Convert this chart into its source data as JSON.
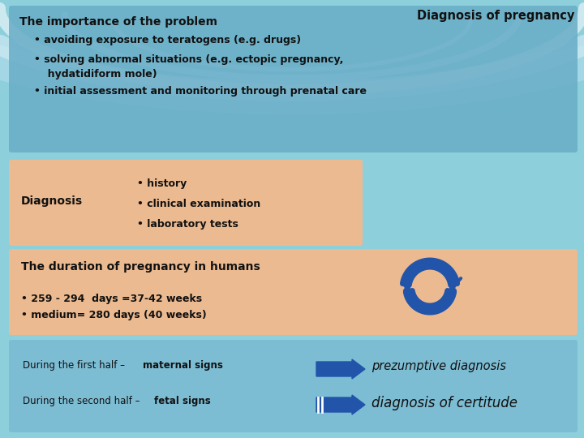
{
  "title": "Diagnosis of pregnancy",
  "bg_color": "#8ecfdc",
  "box1_color": "#6aaec8",
  "box2_color": "#f5b98a",
  "box3_color": "#f5b98a",
  "box4_color": "#7bbbd4",
  "importance_title": "The importance of the problem",
  "importance_bullet1": "• avoiding exposure to teratogens (e.g. drugs)",
  "importance_bullet2a": "• solving abnormal situations (e.g. ectopic pregnancy,",
  "importance_bullet2b": "  hydatidiform mole)",
  "importance_bullet3": "• initial assessment and monitoring through prenatal care",
  "diagnosis_label": "Diagnosis",
  "diag_b1": "• history",
  "diag_b2": "• clinical examination",
  "diag_b3": "• laboratory tests",
  "duration_title": "The duration of pregnancy in humans",
  "dur_b1": "• 259 - 294  days =37-42 weeks",
  "dur_b2": "• medium= 280 days (40 weeks)",
  "line1_normal": "During the first half – ",
  "line1_bold": "maternal signs",
  "arrow1_text": "prezumptive diagnosis",
  "line2_normal": "During the second half – ",
  "line2_bold": "fetal signs",
  "arrow2_text": "diagnosis of certitude",
  "arrow_color": "#2255aa",
  "text_color": "#111111"
}
